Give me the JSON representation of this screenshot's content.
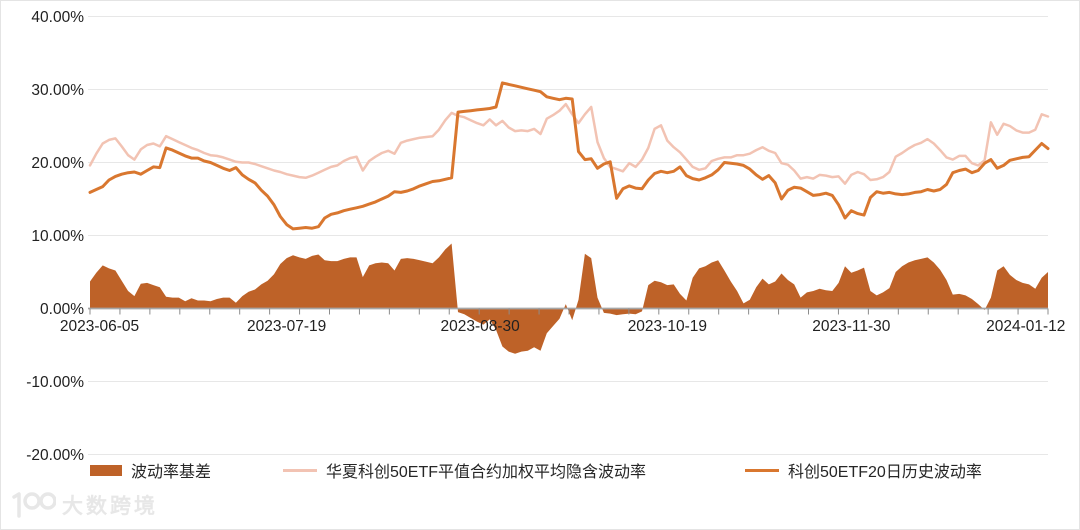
{
  "watermark": {
    "text": "大数跨境"
  },
  "colors": {
    "area": "#BE6228",
    "implied_line": "#F2C3B3",
    "historical_line": "#D9772F",
    "grid": "#e7e7e7",
    "axis": "#a6a6a6",
    "tick": "#8c8c8c",
    "label_text": "#212121",
    "legend_text": "#262626",
    "watermark": "#e7e7e7"
  },
  "chart_data": {
    "type": "combo",
    "n_points": 152,
    "x_range": [
      "2023-06-05",
      "2024-01-12"
    ],
    "ylim": [
      -20,
      40
    ],
    "unit": "%",
    "grid": "horizontal",
    "legend_position": "bottom",
    "y_ticks": [
      [
        40,
        "40.00%"
      ],
      [
        30,
        "30.00%"
      ],
      [
        20,
        "20.00%"
      ],
      [
        10,
        "10.00%"
      ],
      [
        0,
        "0.00%"
      ],
      [
        -10,
        "-10.00%"
      ],
      [
        -20,
        "-20.00%"
      ]
    ],
    "x_ticks": [
      {
        "day": 1.5,
        "label": "2023-06-05"
      },
      {
        "day": 31,
        "label": "2023-07-19"
      },
      {
        "day": 61.5,
        "label": "2023-08-30"
      },
      {
        "day": 91,
        "label": "2023-10-19"
      },
      {
        "day": 120,
        "label": "2023-11-30"
      },
      {
        "day": 147.5,
        "label": "2024-01-12"
      }
    ],
    "series": [
      {
        "name": "波动率基差",
        "type": "area",
        "color": "#BE6228",
        "values": [
          3.7,
          4.9,
          5.9,
          5.5,
          5.2,
          3.8,
          2.4,
          1.7,
          3.4,
          3.5,
          3.2,
          2.9,
          1.6,
          1.5,
          1.5,
          1.0,
          1.4,
          1.1,
          1.1,
          1.0,
          1.3,
          1.5,
          1.5,
          0.8,
          1.7,
          2.3,
          2.6,
          3.3,
          3.8,
          4.7,
          6.1,
          6.9,
          7.3,
          7.0,
          6.8,
          7.2,
          7.4,
          6.6,
          6.5,
          6.5,
          6.8,
          7.0,
          7.0,
          4.3,
          5.9,
          6.2,
          6.3,
          6.2,
          5.2,
          6.8,
          6.9,
          6.8,
          6.6,
          6.4,
          6.2,
          7.0,
          8.1,
          8.9,
          -0.5,
          -0.8,
          -1.3,
          -1.8,
          -2.2,
          -1.5,
          -2.9,
          -5.2,
          -5.9,
          -6.2,
          -5.9,
          -5.8,
          -5.3,
          -5.8,
          -3.4,
          -2.4,
          -1.4,
          0.6,
          -1.6,
          1.2,
          7.5,
          6.9,
          1.5,
          -0.6,
          -0.7,
          -0.9,
          -0.8,
          -0.7,
          -0.8,
          -0.4,
          3.2,
          3.8,
          3.6,
          3.2,
          3.3,
          2.0,
          1.1,
          4.2,
          5.5,
          5.8,
          6.3,
          6.6,
          5.2,
          3.7,
          2.4,
          0.7,
          1.2,
          2.9,
          4.1,
          3.3,
          3.7,
          4.8,
          3.9,
          3.3,
          1.5,
          2.2,
          2.4,
          2.7,
          2.5,
          2.4,
          3.5,
          5.8,
          4.9,
          5.2,
          5.6,
          2.4,
          1.8,
          2.2,
          2.8,
          5.0,
          5.8,
          6.3,
          6.6,
          6.8,
          7.0,
          6.3,
          5.3,
          3.9,
          1.9,
          2.0,
          1.8,
          1.3,
          0.6,
          -0.2,
          1.5,
          5.2,
          5.8,
          4.6,
          3.9,
          3.5,
          3.3,
          2.7,
          4.2,
          5.0
        ]
      },
      {
        "name": "华夏科创50ETF平值合约加权平均隐含波动率",
        "type": "line",
        "color": "#F2C3B3",
        "values": [
          19.6,
          21.2,
          22.6,
          23.1,
          23.3,
          22.2,
          21.0,
          20.4,
          21.8,
          22.4,
          22.6,
          22.2,
          23.6,
          23.2,
          22.8,
          22.4,
          22.0,
          21.7,
          21.3,
          21.0,
          20.9,
          20.7,
          20.4,
          20.1,
          20.0,
          20.0,
          19.8,
          19.5,
          19.2,
          18.9,
          18.7,
          18.4,
          18.2,
          18.0,
          17.9,
          18.2,
          18.6,
          19.0,
          19.4,
          19.6,
          20.2,
          20.6,
          20.8,
          18.9,
          20.2,
          20.8,
          21.3,
          21.6,
          21.2,
          22.7,
          23.0,
          23.2,
          23.4,
          23.5,
          23.6,
          24.5,
          25.8,
          26.8,
          26.4,
          26.2,
          25.8,
          25.4,
          25.1,
          25.9,
          25.1,
          25.7,
          24.8,
          24.3,
          24.4,
          24.3,
          24.6,
          23.9,
          26.0,
          26.5,
          27.1,
          28.0,
          26.6,
          25.4,
          26.6,
          27.6,
          22.8,
          20.6,
          19.4,
          19.1,
          18.8,
          19.9,
          19.4,
          20.4,
          22.0,
          24.6,
          25.1,
          23.0,
          22.1,
          21.4,
          20.4,
          19.4,
          19.0,
          19.2,
          20.2,
          20.5,
          20.7,
          20.7,
          21.0,
          21.0,
          21.2,
          21.7,
          22.1,
          21.6,
          21.3,
          19.9,
          19.7,
          18.9,
          17.8,
          18.0,
          17.8,
          18.3,
          18.2,
          18.0,
          18.1,
          17.1,
          18.3,
          18.7,
          18.4,
          17.6,
          17.7,
          18.0,
          18.7,
          20.8,
          21.3,
          21.9,
          22.4,
          22.7,
          23.2,
          22.6,
          21.7,
          20.7,
          20.4,
          20.9,
          20.9,
          19.9,
          19.6,
          20.3,
          25.5,
          23.8,
          25.3,
          25.0,
          24.4,
          24.1,
          24.1,
          24.5,
          26.6,
          26.3
        ]
      },
      {
        "name": "科创50ETF20日历史波动率",
        "type": "line",
        "color": "#D9772F",
        "values": [
          15.9,
          16.3,
          16.7,
          17.6,
          18.1,
          18.4,
          18.6,
          18.7,
          18.4,
          18.9,
          19.4,
          19.3,
          22.0,
          21.7,
          21.3,
          20.9,
          20.6,
          20.6,
          20.2,
          20.0,
          19.6,
          19.2,
          18.9,
          19.3,
          18.3,
          17.7,
          17.2,
          16.2,
          15.4,
          14.2,
          12.6,
          11.5,
          10.9,
          11.0,
          11.1,
          11.0,
          11.2,
          12.4,
          12.9,
          13.1,
          13.4,
          13.6,
          13.8,
          14.0,
          14.3,
          14.6,
          15.0,
          15.4,
          16.0,
          15.9,
          16.1,
          16.4,
          16.8,
          17.1,
          17.4,
          17.5,
          17.7,
          17.9,
          26.9,
          27.0,
          27.1,
          27.2,
          27.3,
          27.4,
          27.6,
          30.9,
          30.7,
          30.5,
          30.3,
          30.1,
          29.9,
          29.7,
          29.0,
          28.8,
          28.6,
          28.8,
          28.7,
          21.5,
          20.4,
          20.5,
          19.2,
          19.8,
          20.1,
          15.1,
          16.4,
          16.8,
          16.5,
          16.4,
          17.6,
          18.5,
          18.8,
          18.6,
          18.8,
          19.4,
          18.2,
          17.8,
          17.6,
          17.9,
          18.3,
          19.0,
          20.0,
          19.9,
          19.8,
          19.6,
          19.1,
          18.3,
          17.7,
          18.2,
          17.2,
          15.0,
          16.2,
          16.6,
          16.5,
          16.0,
          15.5,
          15.6,
          15.8,
          15.5,
          14.2,
          12.4,
          13.4,
          13.0,
          12.8,
          15.2,
          16.0,
          15.8,
          15.9,
          15.7,
          15.6,
          15.7,
          15.9,
          16.0,
          16.3,
          16.1,
          16.3,
          17.0,
          18.6,
          18.9,
          19.1,
          18.6,
          18.9,
          19.9,
          20.4,
          19.2,
          19.6,
          20.3,
          20.5,
          20.7,
          20.8,
          21.7,
          22.6,
          21.9
        ]
      }
    ]
  }
}
